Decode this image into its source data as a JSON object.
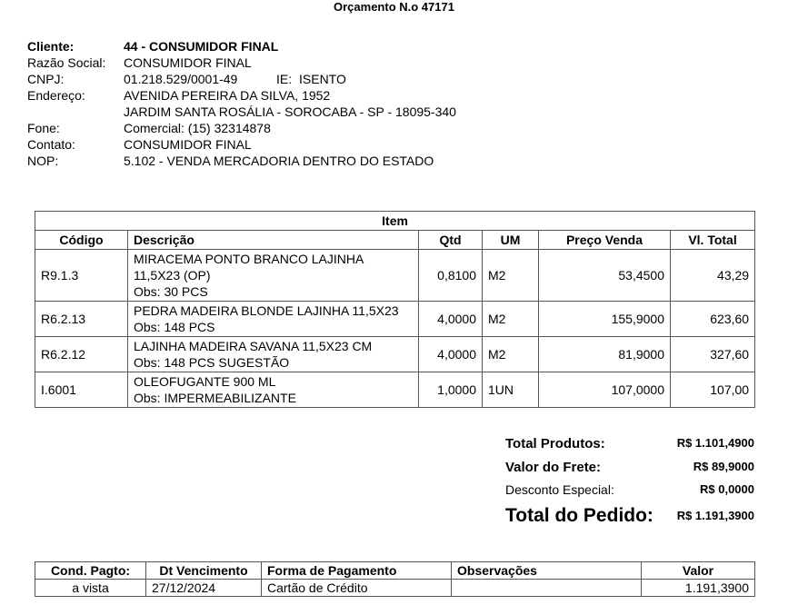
{
  "title": "Orçamento N.o 47171",
  "info": [
    {
      "label": "Cliente:",
      "value": "44 - CONSUMIDOR FINAL",
      "bold": true
    },
    {
      "label": "Razão Social:",
      "value": "CONSUMIDOR FINAL"
    },
    {
      "label": "CNPJ:",
      "value": "01.218.529/0001-49",
      "extra_label": "IE:",
      "extra_value": "ISENTO"
    },
    {
      "label": "Endereço:",
      "value": "AVENIDA PEREIRA DA SILVA, 1952"
    },
    {
      "label": "",
      "value": "JARDIM SANTA ROSÁLIA - SOROCABA - SP - 18095-340"
    },
    {
      "label": "Fone:",
      "value": "Comercial: (15) 32314878"
    },
    {
      "label": "Contato:",
      "value": "CONSUMIDOR FINAL"
    },
    {
      "label": "NOP:",
      "value": "5.102 - VENDA MERCADORIA DENTRO DO ESTADO"
    }
  ],
  "items": {
    "caption": "Item",
    "headers": [
      "Código",
      "Descrição",
      "Qtd",
      "UM",
      "Preço Venda",
      "Vl. Total"
    ],
    "rows": [
      {
        "code": "R9.1.3",
        "desc": "MIRACEMA PONTO BRANCO LAJINHA 11,5X23 (OP)",
        "obs": "Obs: 30 PCS",
        "qtd": "0,8100",
        "um": "M2",
        "preco": "53,4500",
        "total": "43,29"
      },
      {
        "code": "R6.2.13",
        "desc": "PEDRA MADEIRA BLONDE LAJINHA 11,5X23",
        "obs": "Obs: 148 PCS",
        "qtd": "4,0000",
        "um": "M2",
        "preco": "155,9000",
        "total": "623,60"
      },
      {
        "code": "R6.2.12",
        "desc": "LAJINHA MADEIRA SAVANA 11,5X23 CM",
        "obs": "Obs: 148 PCS SUGESTÃO",
        "qtd": "4,0000",
        "um": "M2",
        "preco": "81,9000",
        "total": "327,60"
      },
      {
        "code": "I.6001",
        "desc": "OLEOFUGANTE 900 ML",
        "obs": "Obs: IMPERMEABILIZANTE",
        "qtd": "1,0000",
        "um": "1UN",
        "preco": "107,0000",
        "total": "107,00"
      }
    ]
  },
  "totals": [
    {
      "label": "Total Produtos:",
      "value": "R$ 1.101,4900"
    },
    {
      "label": "Valor do Frete:",
      "value": "R$ 89,9000"
    },
    {
      "label": "Desconto Especial:",
      "value": "R$ 0,0000"
    },
    {
      "label": "Total do Pedido:",
      "value": "R$ 1.191,3900"
    }
  ],
  "payment": {
    "headers": [
      "Cond. Pagto:",
      "Dt Vencimento",
      "Forma de Pagamento",
      "Observações",
      "Valor"
    ],
    "row": [
      "a vista",
      "27/12/2024",
      "Cartão de Crédito",
      "",
      "1.191,3900"
    ]
  }
}
